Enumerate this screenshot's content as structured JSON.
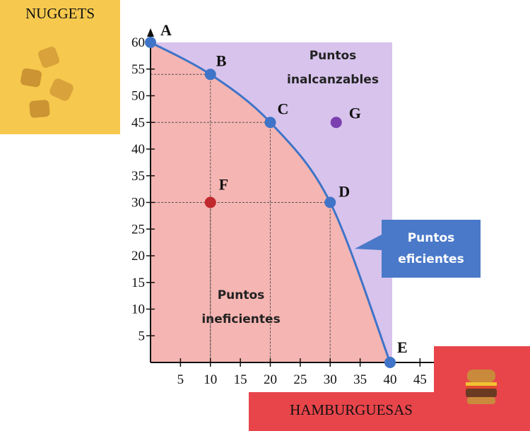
{
  "chart_data": {
    "type": "line",
    "xlabel": "HAMBURGUESAS",
    "ylabel": "NUGGETS",
    "xlim": [
      0,
      45
    ],
    "ylim": [
      0,
      60
    ],
    "x_ticks": [
      5,
      10,
      15,
      20,
      25,
      30,
      35,
      40,
      45
    ],
    "y_ticks": [
      5,
      10,
      15,
      20,
      25,
      30,
      35,
      40,
      45,
      50,
      55,
      60
    ],
    "frontier": [
      {
        "label": "A",
        "x": 0,
        "y": 60
      },
      {
        "label": "B",
        "x": 10,
        "y": 54
      },
      {
        "label": "C",
        "x": 20,
        "y": 45
      },
      {
        "label": "D",
        "x": 30,
        "y": 30
      },
      {
        "label": "E",
        "x": 40,
        "y": 0
      }
    ],
    "points": [
      {
        "label": "F",
        "x": 10,
        "y": 30,
        "color": "#c0282d"
      },
      {
        "label": "G",
        "x": 31,
        "y": 45,
        "color": "#7b3fb0"
      }
    ],
    "regions": {
      "unattainable": "Puntos inalcanzables",
      "inefficient": "Puntos ineficientes"
    },
    "callout": "Puntos eficientes",
    "colors": {
      "inefficient_fill": "#f5b5b2",
      "unattainable_fill": "#d8c3ec",
      "curve": "#3f74c8",
      "callout": "#4a79c9",
      "y_box": "#f6c94e",
      "x_box": "#e8454b"
    },
    "icons": {
      "y_box": "nuggets-icon",
      "x_box": "hamburger-icon"
    }
  }
}
